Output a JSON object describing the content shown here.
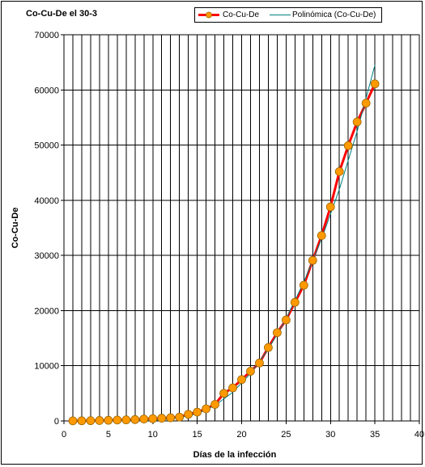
{
  "chart_data": {
    "type": "line",
    "title": "Co-Cu-De el 30-3",
    "xlabel": "Días de la infección",
    "ylabel": "Co-Cu-De",
    "xlim": [
      0,
      40
    ],
    "ylim": [
      0,
      70000
    ],
    "xticks": [
      "0",
      "5",
      "10",
      "15",
      "20",
      "25",
      "30",
      "35",
      "40"
    ],
    "yticks": [
      "0",
      "10000",
      "20000",
      "30000",
      "40000",
      "50000",
      "60000",
      "70000"
    ],
    "grid": true,
    "legend_position": "top",
    "series": [
      {
        "name": "Co-Cu-De",
        "color": "#ff0000",
        "marker_color": "#ff9900",
        "x": [
          1,
          2,
          3,
          4,
          5,
          6,
          7,
          8,
          9,
          10,
          11,
          12,
          13,
          14,
          15,
          16,
          17,
          18,
          19,
          20,
          21,
          22,
          23,
          24,
          25,
          26,
          27,
          28,
          29,
          30,
          31,
          32,
          33,
          34,
          35
        ],
        "y": [
          20,
          30,
          50,
          80,
          120,
          170,
          200,
          250,
          350,
          420,
          500,
          580,
          700,
          1200,
          1600,
          2200,
          3000,
          5000,
          6000,
          7500,
          9000,
          10500,
          13300,
          16000,
          18300,
          21500,
          24600,
          29100,
          33600,
          38800,
          45200,
          49900,
          54200,
          57600,
          61100
        ]
      },
      {
        "name": "Polinómica (Co-Cu-De)",
        "color": "#008080",
        "x": [
          1,
          3,
          5,
          7,
          9,
          11,
          13,
          15,
          17,
          19,
          21,
          23,
          25,
          27,
          29,
          31,
          33,
          35
        ],
        "y": [
          0,
          0,
          0,
          0,
          50,
          200,
          600,
          1300,
          2800,
          5200,
          8600,
          13000,
          18500,
          25200,
          33000,
          42000,
          52500,
          64500
        ]
      }
    ]
  }
}
